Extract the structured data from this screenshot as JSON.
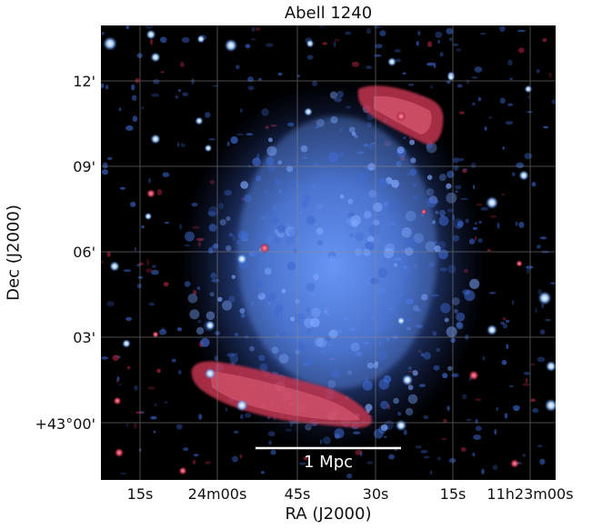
{
  "title": "Abell 1240",
  "axes": {
    "xlabel": "RA (J2000)",
    "ylabel": "Dec (J2000)",
    "xticks": [
      "15s",
      "24m00s",
      "45s",
      "30s",
      "15s",
      "11h23m00s"
    ],
    "yticks": [
      "12'",
      "09'",
      "06'",
      "03'",
      "+43°00'"
    ]
  },
  "scalebar": {
    "label": "1 Mpc",
    "color": "#ffffff"
  },
  "colors": {
    "xray_emission": "#5a8cff",
    "radio_relic": "#d23a55",
    "grid": "#8a8a8a",
    "background": "#000000"
  }
}
